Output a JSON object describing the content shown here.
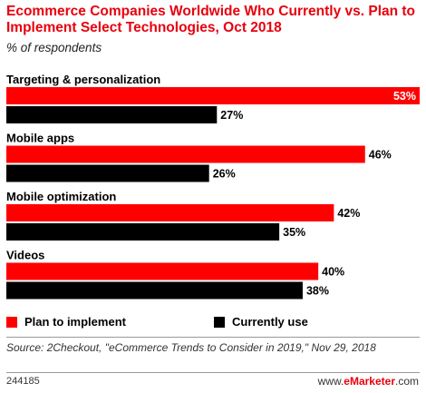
{
  "header": {
    "title": "Ecommerce Companies Worldwide Who Currently vs. Plan to Implement Select Technologies, Oct 2018",
    "subtitle": "% of respondents"
  },
  "legend": {
    "plan": "Plan to implement",
    "current": "Currently use"
  },
  "colors": {
    "plan": "#ff0000",
    "current": "#000000",
    "title": "#e8000d"
  },
  "footer": {
    "source": "Source: 2Checkout, \"eCommerce Trends to Consider in 2019,\" Nov 29, 2018",
    "chart_id": "244185",
    "brand_prefix": "www.",
    "brand_name": "eMarketer",
    "brand_suffix": ".com"
  },
  "chart_data": {
    "type": "bar",
    "orientation": "horizontal",
    "categories": [
      "Targeting & personalization",
      "Mobile apps",
      "Mobile optimization",
      "Videos"
    ],
    "series": [
      {
        "name": "Plan to implement",
        "values": [
          53,
          46,
          42,
          40
        ],
        "labels": [
          "53%",
          "46%",
          "42%",
          "40%"
        ]
      },
      {
        "name": "Currently use",
        "values": [
          27,
          26,
          35,
          38
        ],
        "labels": [
          "27%",
          "26%",
          "35%",
          "38%"
        ]
      }
    ],
    "xlim": [
      0,
      53
    ],
    "grid": false,
    "legend_position": "bottom"
  }
}
